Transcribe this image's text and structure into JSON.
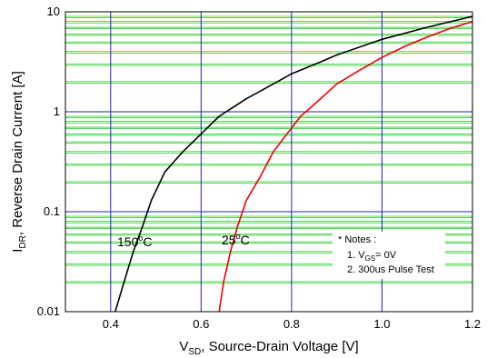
{
  "chart_data": {
    "type": "line",
    "x_axis": {
      "label_main": "V",
      "label_sub": "SD",
      "label_rest": ", Source-Drain Voltage [V]",
      "range": [
        0.3,
        1.2
      ],
      "ticks": [
        0.4,
        0.6,
        0.8,
        1.0,
        1.2
      ],
      "tick_labels": [
        "0.4",
        "0.6",
        "0.8",
        "1.0",
        "1.2"
      ]
    },
    "y_axis": {
      "label_main": "I",
      "label_sub": "DR",
      "label_rest": ", Reverse Drain Current [A]",
      "scale": "log",
      "range": [
        0.01,
        10
      ],
      "ticks": [
        0.01,
        0.1,
        1,
        10
      ],
      "tick_labels": [
        "0.01",
        "0.1",
        "1",
        "10"
      ]
    },
    "grid": true,
    "colors": {
      "major_grid": "#2020c0",
      "minor_grid": "#22cc22",
      "series_150": "#000000",
      "series_25": "#ee0000"
    },
    "series": [
      {
        "label_text": "150",
        "label_unit": "C",
        "color": "#000000",
        "points": [
          [
            0.41,
            0.01
          ],
          [
            0.43,
            0.02
          ],
          [
            0.45,
            0.04
          ],
          [
            0.47,
            0.07
          ],
          [
            0.49,
            0.13
          ],
          [
            0.52,
            0.25
          ],
          [
            0.56,
            0.4
          ],
          [
            0.6,
            0.6
          ],
          [
            0.64,
            0.9
          ],
          [
            0.7,
            1.35
          ],
          [
            0.76,
            1.9
          ],
          [
            0.8,
            2.4
          ],
          [
            0.86,
            3.1
          ],
          [
            0.9,
            3.7
          ],
          [
            1.0,
            5.3
          ],
          [
            1.1,
            7.0
          ],
          [
            1.2,
            9.0
          ]
        ]
      },
      {
        "label_text": "25",
        "label_unit": "C",
        "color": "#ee0000",
        "points": [
          [
            0.64,
            0.01
          ],
          [
            0.65,
            0.02
          ],
          [
            0.665,
            0.04
          ],
          [
            0.68,
            0.07
          ],
          [
            0.7,
            0.13
          ],
          [
            0.73,
            0.22
          ],
          [
            0.76,
            0.4
          ],
          [
            0.79,
            0.6
          ],
          [
            0.82,
            0.9
          ],
          [
            0.86,
            1.3
          ],
          [
            0.9,
            1.9
          ],
          [
            0.95,
            2.6
          ],
          [
            1.0,
            3.5
          ],
          [
            1.05,
            4.5
          ],
          [
            1.1,
            5.6
          ],
          [
            1.15,
            6.8
          ],
          [
            1.2,
            8.0
          ]
        ]
      }
    ],
    "notes": {
      "title": "* Notes :",
      "line1_prefix": "1. V",
      "line1_sub": "GS",
      "line1_suffix": "= 0V",
      "line2": "2. 300us Pulse Test"
    }
  }
}
